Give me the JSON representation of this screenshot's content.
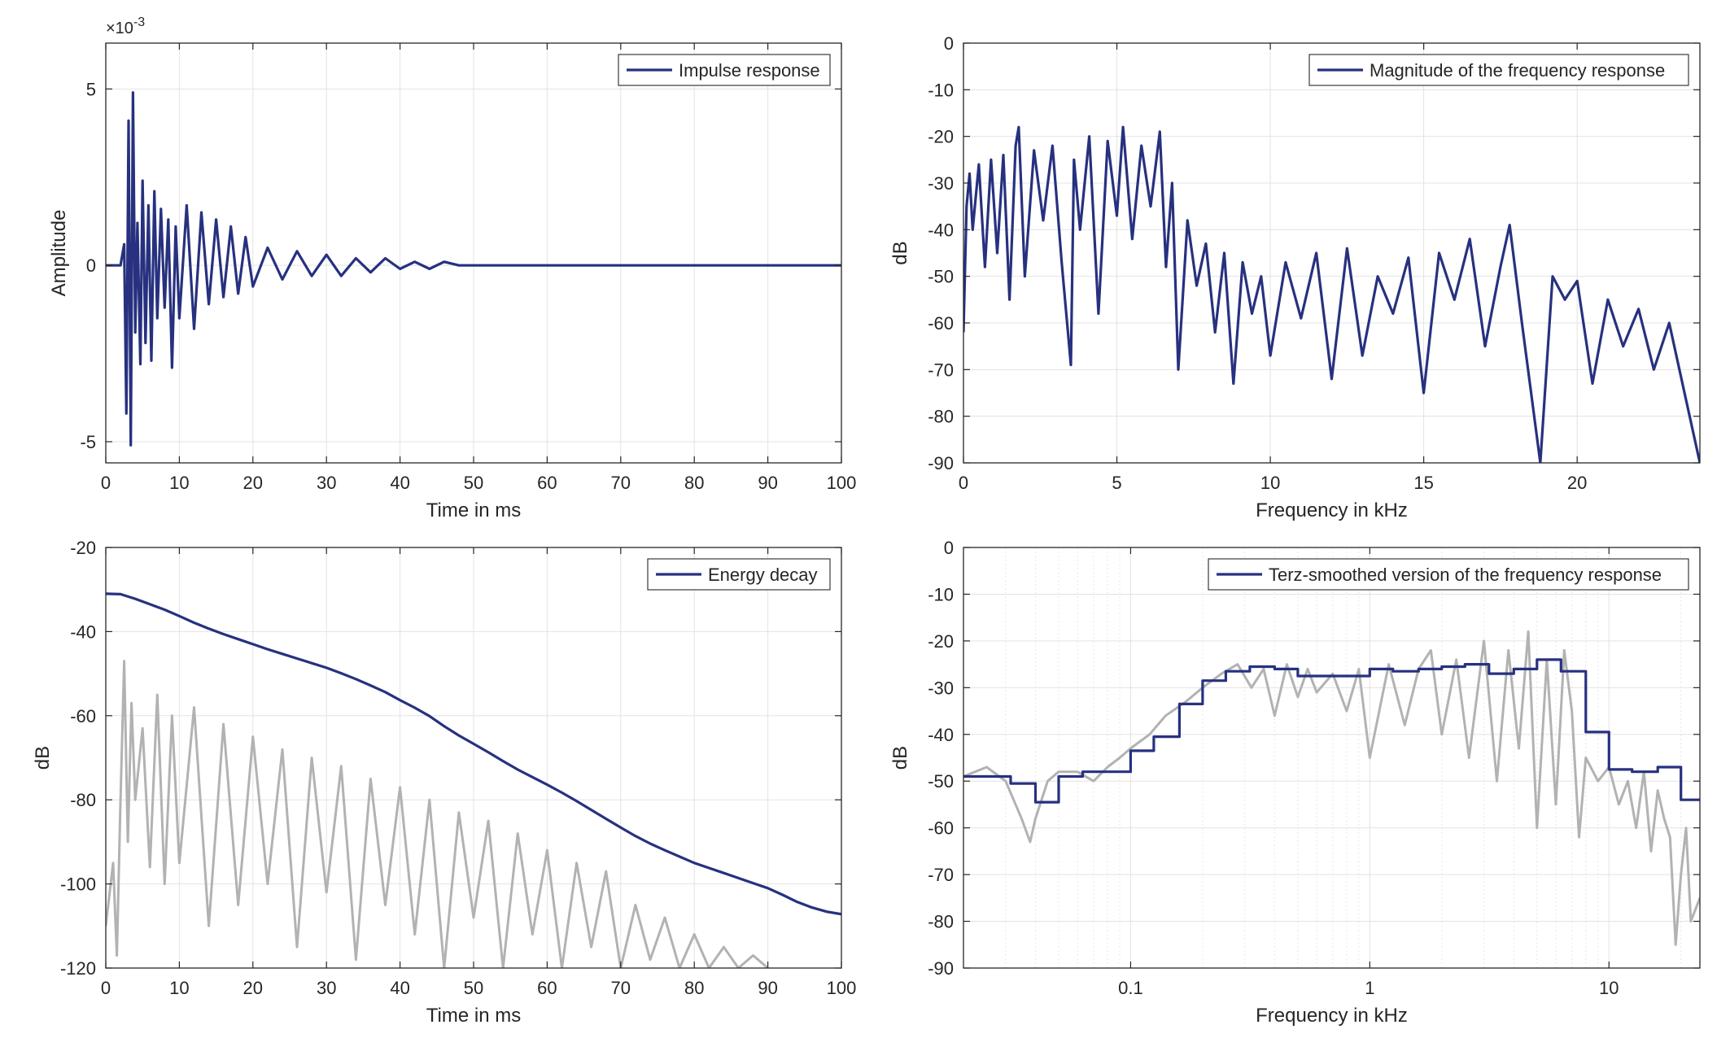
{
  "colors": {
    "series": "#27317f",
    "gray": "#b2b2b2",
    "grid": "#e3e3e3",
    "axis": "#262626"
  },
  "chart_data": [
    {
      "id": "impulse",
      "type": "line",
      "xlabel": "Time in ms",
      "ylabel": "Amplitude",
      "xlim": [
        0,
        100
      ],
      "ylim": [
        -0.0056,
        0.0063
      ],
      "xscale": "linear",
      "grid": true,
      "xticks": [
        0,
        10,
        20,
        30,
        40,
        50,
        60,
        70,
        80,
        90,
        100
      ],
      "xtick_labels": [
        "0",
        "10",
        "20",
        "30",
        "40",
        "50",
        "60",
        "70",
        "80",
        "90",
        "100"
      ],
      "yticks": [
        -0.005,
        0,
        0.005
      ],
      "ytick_labels": [
        "-5",
        "0",
        "5"
      ],
      "y_exponent_label": "×10",
      "y_exponent_power": "-3",
      "legend": "top-right",
      "series": [
        {
          "name": "Impulse response",
          "color_key": "series",
          "x": [
            0,
            1,
            2,
            2.5,
            2.8,
            3.1,
            3.4,
            3.7,
            4.0,
            4.3,
            4.7,
            5.0,
            5.4,
            5.8,
            6.2,
            6.6,
            7.0,
            7.5,
            8.0,
            8.5,
            9.0,
            9.5,
            10.0,
            11.0,
            12.0,
            13.0,
            14.0,
            15.0,
            16.0,
            17.0,
            18.0,
            19.0,
            20.0,
            22.0,
            24.0,
            26.0,
            28.0,
            30.0,
            32.0,
            34.0,
            36.0,
            38.0,
            40.0,
            42.0,
            44.0,
            46.0,
            48.0,
            50.0,
            55.0,
            60.0,
            70.0,
            80.0,
            90.0,
            100.0
          ],
          "y": [
            0,
            0,
            0,
            0.0006,
            -0.0042,
            0.0041,
            -0.0051,
            0.0049,
            -0.0019,
            0.0012,
            -0.0028,
            0.0024,
            -0.0022,
            0.0017,
            -0.0027,
            0.0021,
            -0.0015,
            0.0016,
            -0.0012,
            0.0013,
            -0.0029,
            0.0011,
            -0.0015,
            0.0017,
            -0.0018,
            0.0015,
            -0.0011,
            0.0013,
            -0.0009,
            0.0011,
            -0.0008,
            0.0008,
            -0.0006,
            0.0005,
            -0.0004,
            0.0004,
            -0.0003,
            0.0003,
            -0.0003,
            0.0002,
            -0.0002,
            0.0002,
            -0.0001,
            0.0001,
            -0.0001,
            0.0001,
            0,
            0,
            0,
            0,
            0,
            0,
            0,
            0
          ]
        }
      ]
    },
    {
      "id": "magnitude",
      "type": "line",
      "xlabel": "Frequency in kHz",
      "ylabel": "dB",
      "xlim": [
        0,
        24
      ],
      "ylim": [
        -90,
        0
      ],
      "xscale": "linear",
      "grid": true,
      "xticks": [
        0,
        5,
        10,
        15,
        20
      ],
      "xtick_labels": [
        "0",
        "5",
        "10",
        "15",
        "20"
      ],
      "yticks": [
        -90,
        -80,
        -70,
        -60,
        -50,
        -40,
        -30,
        -20,
        -10,
        0
      ],
      "ytick_labels": [
        "-90",
        "-80",
        "-70",
        "-60",
        "-50",
        "-40",
        "-30",
        "-20",
        "-10",
        "0"
      ],
      "legend": "top-right",
      "series": [
        {
          "name": "Magnitude of the frequency response",
          "color_key": "series",
          "x": [
            0,
            0.1,
            0.2,
            0.3,
            0.5,
            0.7,
            0.9,
            1.1,
            1.3,
            1.5,
            1.7,
            1.8,
            2.0,
            2.3,
            2.6,
            2.9,
            3.2,
            3.5,
            3.6,
            3.8,
            4.1,
            4.4,
            4.7,
            5.0,
            5.2,
            5.5,
            5.8,
            6.1,
            6.4,
            6.6,
            6.8,
            7.0,
            7.3,
            7.6,
            7.9,
            8.2,
            8.5,
            8.8,
            9.1,
            9.4,
            9.7,
            10.0,
            10.5,
            11.0,
            11.5,
            12.0,
            12.5,
            13.0,
            13.5,
            14.0,
            14.5,
            15.0,
            15.5,
            16.0,
            16.5,
            17.0,
            17.5,
            17.8,
            18.2,
            18.8,
            19.2,
            19.6,
            20.0,
            20.5,
            21.0,
            21.5,
            22.0,
            22.5,
            23.0,
            23.5,
            24.0
          ],
          "y": [
            -62,
            -35,
            -28,
            -40,
            -26,
            -48,
            -25,
            -45,
            -24,
            -55,
            -22,
            -18,
            -50,
            -23,
            -38,
            -22,
            -47,
            -69,
            -25,
            -40,
            -20,
            -58,
            -21,
            -37,
            -18,
            -42,
            -22,
            -35,
            -19,
            -48,
            -30,
            -70,
            -38,
            -52,
            -43,
            -62,
            -45,
            -73,
            -47,
            -58,
            -50,
            -67,
            -47,
            -59,
            -45,
            -72,
            -44,
            -67,
            -50,
            -58,
            -46,
            -75,
            -45,
            -55,
            -42,
            -65,
            -48,
            -39,
            -60,
            -90,
            -50,
            -55,
            -51,
            -73,
            -55,
            -65,
            -57,
            -70,
            -60,
            -75,
            -90
          ]
        }
      ]
    },
    {
      "id": "energy",
      "type": "line",
      "xlabel": "Time in ms",
      "ylabel": "dB",
      "xlim": [
        0,
        100
      ],
      "ylim": [
        -120,
        -20
      ],
      "xscale": "linear",
      "grid": true,
      "xticks": [
        0,
        10,
        20,
        30,
        40,
        50,
        60,
        70,
        80,
        90,
        100
      ],
      "xtick_labels": [
        "0",
        "10",
        "20",
        "30",
        "40",
        "50",
        "60",
        "70",
        "80",
        "90",
        "100"
      ],
      "yticks": [
        -120,
        -100,
        -80,
        -60,
        -40,
        -20
      ],
      "ytick_labels": [
        "-120",
        "-100",
        "-80",
        "-60",
        "-40",
        "-20"
      ],
      "legend": "top-right",
      "series": [
        {
          "name": "",
          "color_key": "gray",
          "x": [
            0,
            1,
            1.5,
            2,
            2.5,
            3,
            3.5,
            4,
            5,
            6,
            7,
            8,
            9,
            10,
            12,
            14,
            16,
            18,
            20,
            22,
            24,
            26,
            28,
            30,
            32,
            34,
            36,
            38,
            40,
            42,
            44,
            46,
            48,
            50,
            52,
            54,
            56,
            58,
            60,
            62,
            64,
            66,
            68,
            70,
            72,
            74,
            76,
            78,
            80,
            82,
            84,
            86,
            88,
            90
          ],
          "y": [
            -110,
            -95,
            -117,
            -80,
            -47,
            -90,
            -57,
            -80,
            -63,
            -96,
            -55,
            -100,
            -60,
            -95,
            -58,
            -110,
            -62,
            -105,
            -65,
            -100,
            -68,
            -115,
            -70,
            -102,
            -72,
            -118,
            -75,
            -105,
            -77,
            -112,
            -80,
            -120,
            -83,
            -108,
            -85,
            -120,
            -88,
            -112,
            -92,
            -120,
            -95,
            -115,
            -97,
            -120,
            -105,
            -118,
            -108,
            -120,
            -112,
            -120,
            -115,
            -120,
            -117,
            -120
          ]
        },
        {
          "name": "Energy decay",
          "color_key": "series",
          "x": [
            0,
            2,
            4,
            6,
            8,
            10,
            12,
            14,
            16,
            18,
            20,
            22,
            24,
            26,
            28,
            30,
            32,
            34,
            36,
            38,
            40,
            42,
            44,
            46,
            48,
            50,
            52,
            54,
            56,
            58,
            60,
            62,
            64,
            66,
            68,
            70,
            72,
            74,
            76,
            78,
            80,
            82,
            84,
            86,
            88,
            90,
            92,
            94,
            96,
            98,
            100
          ],
          "y": [
            -31,
            -31.1,
            -32.2,
            -33.5,
            -34.8,
            -36.3,
            -37.9,
            -39.3,
            -40.6,
            -41.8,
            -43,
            -44.2,
            -45.3,
            -46.4,
            -47.5,
            -48.6,
            -49.9,
            -51.3,
            -52.8,
            -54.4,
            -56.3,
            -58.1,
            -60.1,
            -62.5,
            -64.7,
            -66.7,
            -68.7,
            -70.8,
            -72.8,
            -74.6,
            -76.4,
            -78.3,
            -80.3,
            -82.4,
            -84.5,
            -86.6,
            -88.6,
            -90.4,
            -92.0,
            -93.5,
            -95.0,
            -96.2,
            -97.4,
            -98.6,
            -99.8,
            -101.0,
            -102.6,
            -104.3,
            -105.6,
            -106.6,
            -107.2
          ]
        }
      ]
    },
    {
      "id": "terz",
      "type": "line",
      "xlabel": "Frequency in kHz",
      "ylabel": "dB",
      "xlim": [
        0.02,
        24
      ],
      "ylim": [
        -90,
        0
      ],
      "xscale": "log",
      "grid": true,
      "xticks": [
        0.1,
        1,
        10
      ],
      "xtick_labels": [
        "0.1",
        "1",
        "10"
      ],
      "yticks": [
        -90,
        -80,
        -70,
        -60,
        -50,
        -40,
        -30,
        -20,
        -10,
        0
      ],
      "ytick_labels": [
        "-90",
        "-80",
        "-70",
        "-60",
        "-50",
        "-40",
        "-30",
        "-20",
        "-10",
        "0"
      ],
      "legend": "top-right",
      "series": [
        {
          "name": "",
          "color_key": "gray",
          "x": [
            0.02,
            0.025,
            0.03,
            0.035,
            0.038,
            0.04,
            0.045,
            0.05,
            0.06,
            0.07,
            0.08,
            0.09,
            0.1,
            0.12,
            0.14,
            0.17,
            0.2,
            0.24,
            0.28,
            0.32,
            0.36,
            0.4,
            0.45,
            0.5,
            0.55,
            0.6,
            0.7,
            0.8,
            0.9,
            1.0,
            1.2,
            1.4,
            1.6,
            1.8,
            2.0,
            2.3,
            2.6,
            3.0,
            3.4,
            3.8,
            4.2,
            4.6,
            5.0,
            5.5,
            6.0,
            6.5,
            7.0,
            7.5,
            8.0,
            9.0,
            10,
            11,
            12,
            13,
            14,
            15,
            16,
            17,
            18,
            19,
            20,
            21,
            22,
            24
          ],
          "y": [
            -49,
            -47,
            -50,
            -58,
            -63,
            -58,
            -50,
            -48,
            -48,
            -50,
            -47,
            -45,
            -43,
            -40,
            -36,
            -33,
            -30,
            -27,
            -25,
            -30,
            -26,
            -36,
            -25,
            -32,
            -26,
            -31,
            -27,
            -35,
            -26,
            -45,
            -25,
            -38,
            -26,
            -22,
            -40,
            -24,
            -45,
            -20,
            -50,
            -22,
            -43,
            -18,
            -60,
            -24,
            -55,
            -22,
            -35,
            -62,
            -45,
            -50,
            -47,
            -55,
            -50,
            -60,
            -48,
            -65,
            -52,
            -58,
            -62,
            -85,
            -70,
            -60,
            -80,
            -75
          ]
        },
        {
          "name": "Terz-smoothed version of the frequency response",
          "color_key": "series",
          "step": true,
          "x": [
            0.02,
            0.0315,
            0.04,
            0.05,
            0.063,
            0.08,
            0.1,
            0.125,
            0.16,
            0.2,
            0.25,
            0.315,
            0.4,
            0.5,
            0.63,
            0.8,
            1.0,
            1.25,
            1.6,
            2.0,
            2.5,
            3.15,
            4.0,
            5.0,
            6.3,
            8.0,
            10,
            12.5,
            16,
            20,
            24
          ],
          "y": [
            -49,
            -50.5,
            -54.5,
            -49,
            -48,
            -48,
            -43.5,
            -40.5,
            -33.5,
            -28.5,
            -26.5,
            -25.5,
            -26,
            -27.5,
            -27.5,
            -27.5,
            -26,
            -26.5,
            -26,
            -25.5,
            -25,
            -27,
            -26,
            -24,
            -26.5,
            -39.5,
            -47.5,
            -48,
            -47,
            -54,
            -54
          ]
        }
      ]
    }
  ]
}
